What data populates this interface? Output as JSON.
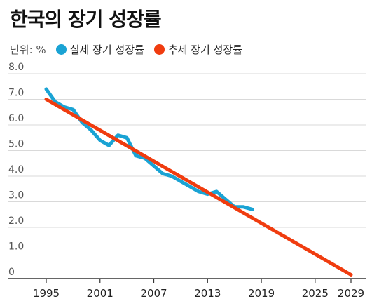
{
  "header": {
    "title": "한국의 장기 성장률",
    "unit_label": "단위: %"
  },
  "colors": {
    "actual": "#1aa3d4",
    "trend": "#f03c0f",
    "grid": "#d9d9d9",
    "axis": "#333333",
    "tick_text": "#555555"
  },
  "chart_data": {
    "type": "line",
    "title": "한국의 장기 성장률",
    "xlabel": "",
    "ylabel": "",
    "unit": "%",
    "xlim": [
      1995,
      2029
    ],
    "ylim": [
      0,
      8.0
    ],
    "grid": true,
    "legend_position": "top-left",
    "x_ticks": [
      1995,
      2001,
      2007,
      2013,
      2019,
      2025,
      2029
    ],
    "y_ticks": [
      {
        "value": 0,
        "label": "0"
      },
      {
        "value": 1,
        "label": "1.0"
      },
      {
        "value": 2,
        "label": "2.0"
      },
      {
        "value": 3,
        "label": "3.0"
      },
      {
        "value": 4,
        "label": "4.0"
      },
      {
        "value": 5,
        "label": "5.0"
      },
      {
        "value": 6,
        "label": "6.0"
      },
      {
        "value": 7,
        "label": "7.0"
      },
      {
        "value": 8,
        "label": "8.0"
      }
    ],
    "series": [
      {
        "name": "실제 장기 성장률",
        "color": "#1aa3d4",
        "x": [
          1995,
          1996,
          1997,
          1998,
          1999,
          2000,
          2001,
          2002,
          2003,
          2004,
          2005,
          2006,
          2007,
          2008,
          2009,
          2010,
          2011,
          2012,
          2013,
          2014,
          2015,
          2016,
          2017,
          2018
        ],
        "y": [
          7.4,
          6.9,
          6.7,
          6.6,
          6.1,
          5.8,
          5.4,
          5.2,
          5.6,
          5.5,
          4.8,
          4.7,
          4.4,
          4.1,
          4.0,
          3.8,
          3.6,
          3.4,
          3.3,
          3.4,
          3.1,
          2.8,
          2.8,
          2.7
        ]
      },
      {
        "name": "추세 장기 성장률",
        "color": "#f03c0f",
        "x": [
          1995,
          2029
        ],
        "y": [
          7.0,
          0.15
        ]
      }
    ]
  }
}
